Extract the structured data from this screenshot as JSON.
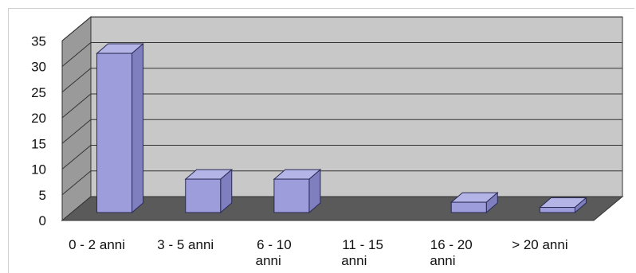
{
  "chart_data": {
    "type": "bar",
    "style": "3d",
    "categories": [
      [
        "0 - 2 anni"
      ],
      [
        "3 - 5 anni"
      ],
      [
        "6 - 10",
        "anni"
      ],
      [
        "11 - 15",
        "anni"
      ],
      [
        "16 - 20",
        "anni"
      ],
      [
        "> 20 anni"
      ]
    ],
    "values": [
      31,
      6.5,
      6.5,
      0,
      2,
      1
    ],
    "ylim": [
      0,
      35
    ],
    "yticks": [
      0,
      5,
      10,
      15,
      20,
      25,
      30,
      35
    ],
    "grid": true,
    "colors": {
      "bar_front": "#9d9ddb",
      "bar_top": "#b4b4e6",
      "bar_side": "#7f7fbf",
      "bar_stroke": "#2a2a55",
      "back_wall": "#c8c8c8",
      "side_wall": "#9a9a9a",
      "floor": "#5a5a5a",
      "grid": "#333333"
    }
  }
}
